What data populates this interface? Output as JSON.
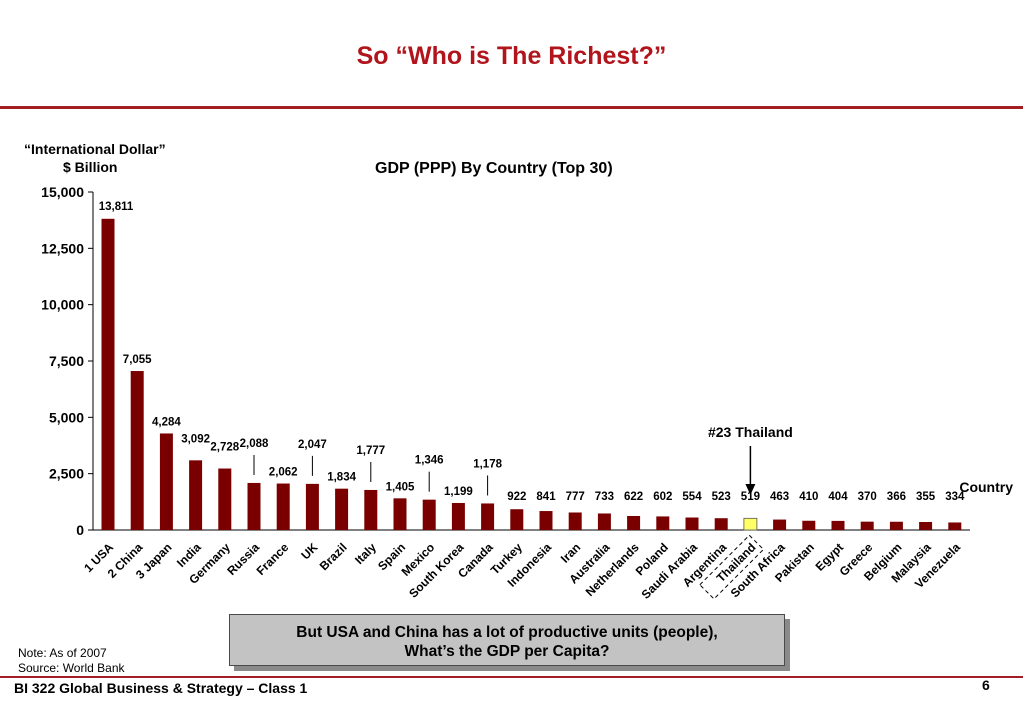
{
  "slide": {
    "title": "So “Who is The Richest?”",
    "y_unit_line1": "“International Dollar”",
    "y_unit_line2": "$ Billion",
    "callout_line1": "But USA and China has a lot of productive units (people),",
    "callout_line2": "What’s the GDP per Capita?",
    "note": "Note: As of 2007",
    "source": "Source: World Bank",
    "footer": "BI 322 Global Business & Strategy – Class 1",
    "page_number": "6"
  },
  "chart_data": {
    "type": "bar",
    "title": "GDP (PPP) By Country (Top 30)",
    "xlabel": "Country",
    "ylabel": "",
    "ylim": [
      0,
      15000
    ],
    "yticks": [
      0,
      2500,
      5000,
      7500,
      10000,
      12500,
      15000
    ],
    "ytick_labels": [
      "0",
      "2,500",
      "5,000",
      "7,500",
      "10,000",
      "12,500",
      "15,000"
    ],
    "categories": [
      "1 USA",
      "2 China",
      "3 Japan",
      "India",
      "Germany",
      "Russia",
      "France",
      "UK",
      "Brazil",
      "Italy",
      "Spain",
      "Mexico",
      "South Korea",
      "Canada",
      "Turkey",
      "Indonesia",
      "Iran",
      "Australia",
      "Netherlands",
      "Poland",
      "Saudi Arabia",
      "Argentina",
      "Thailand",
      "South Africa",
      "Pakistan",
      "Egypt",
      "Greece",
      "Belgium",
      "Malaysia",
      "Venezuela"
    ],
    "values": [
      13811,
      7055,
      4284,
      3092,
      2728,
      2088,
      2062,
      2047,
      1834,
      1777,
      1405,
      1346,
      1199,
      1178,
      922,
      841,
      777,
      733,
      622,
      602,
      554,
      523,
      519,
      463,
      410,
      404,
      370,
      366,
      355,
      334
    ],
    "value_labels": [
      "13,811",
      "7,055",
      "4,284",
      "3,092",
      "2,728",
      "2,088",
      "2,062",
      "2,047",
      "1,834",
      "1,777",
      "1,405",
      "1,346",
      "1,199",
      "1,178",
      "922",
      "841",
      "777",
      "733",
      "622",
      "602",
      "554",
      "523",
      "519",
      "463",
      "410",
      "404",
      "370",
      "366",
      "355",
      "334"
    ],
    "highlight_index": 22,
    "highlight_annotation": "#23 Thailand",
    "bar_color": "#7a0000",
    "highlight_color": "#ffff66",
    "grid": false
  }
}
